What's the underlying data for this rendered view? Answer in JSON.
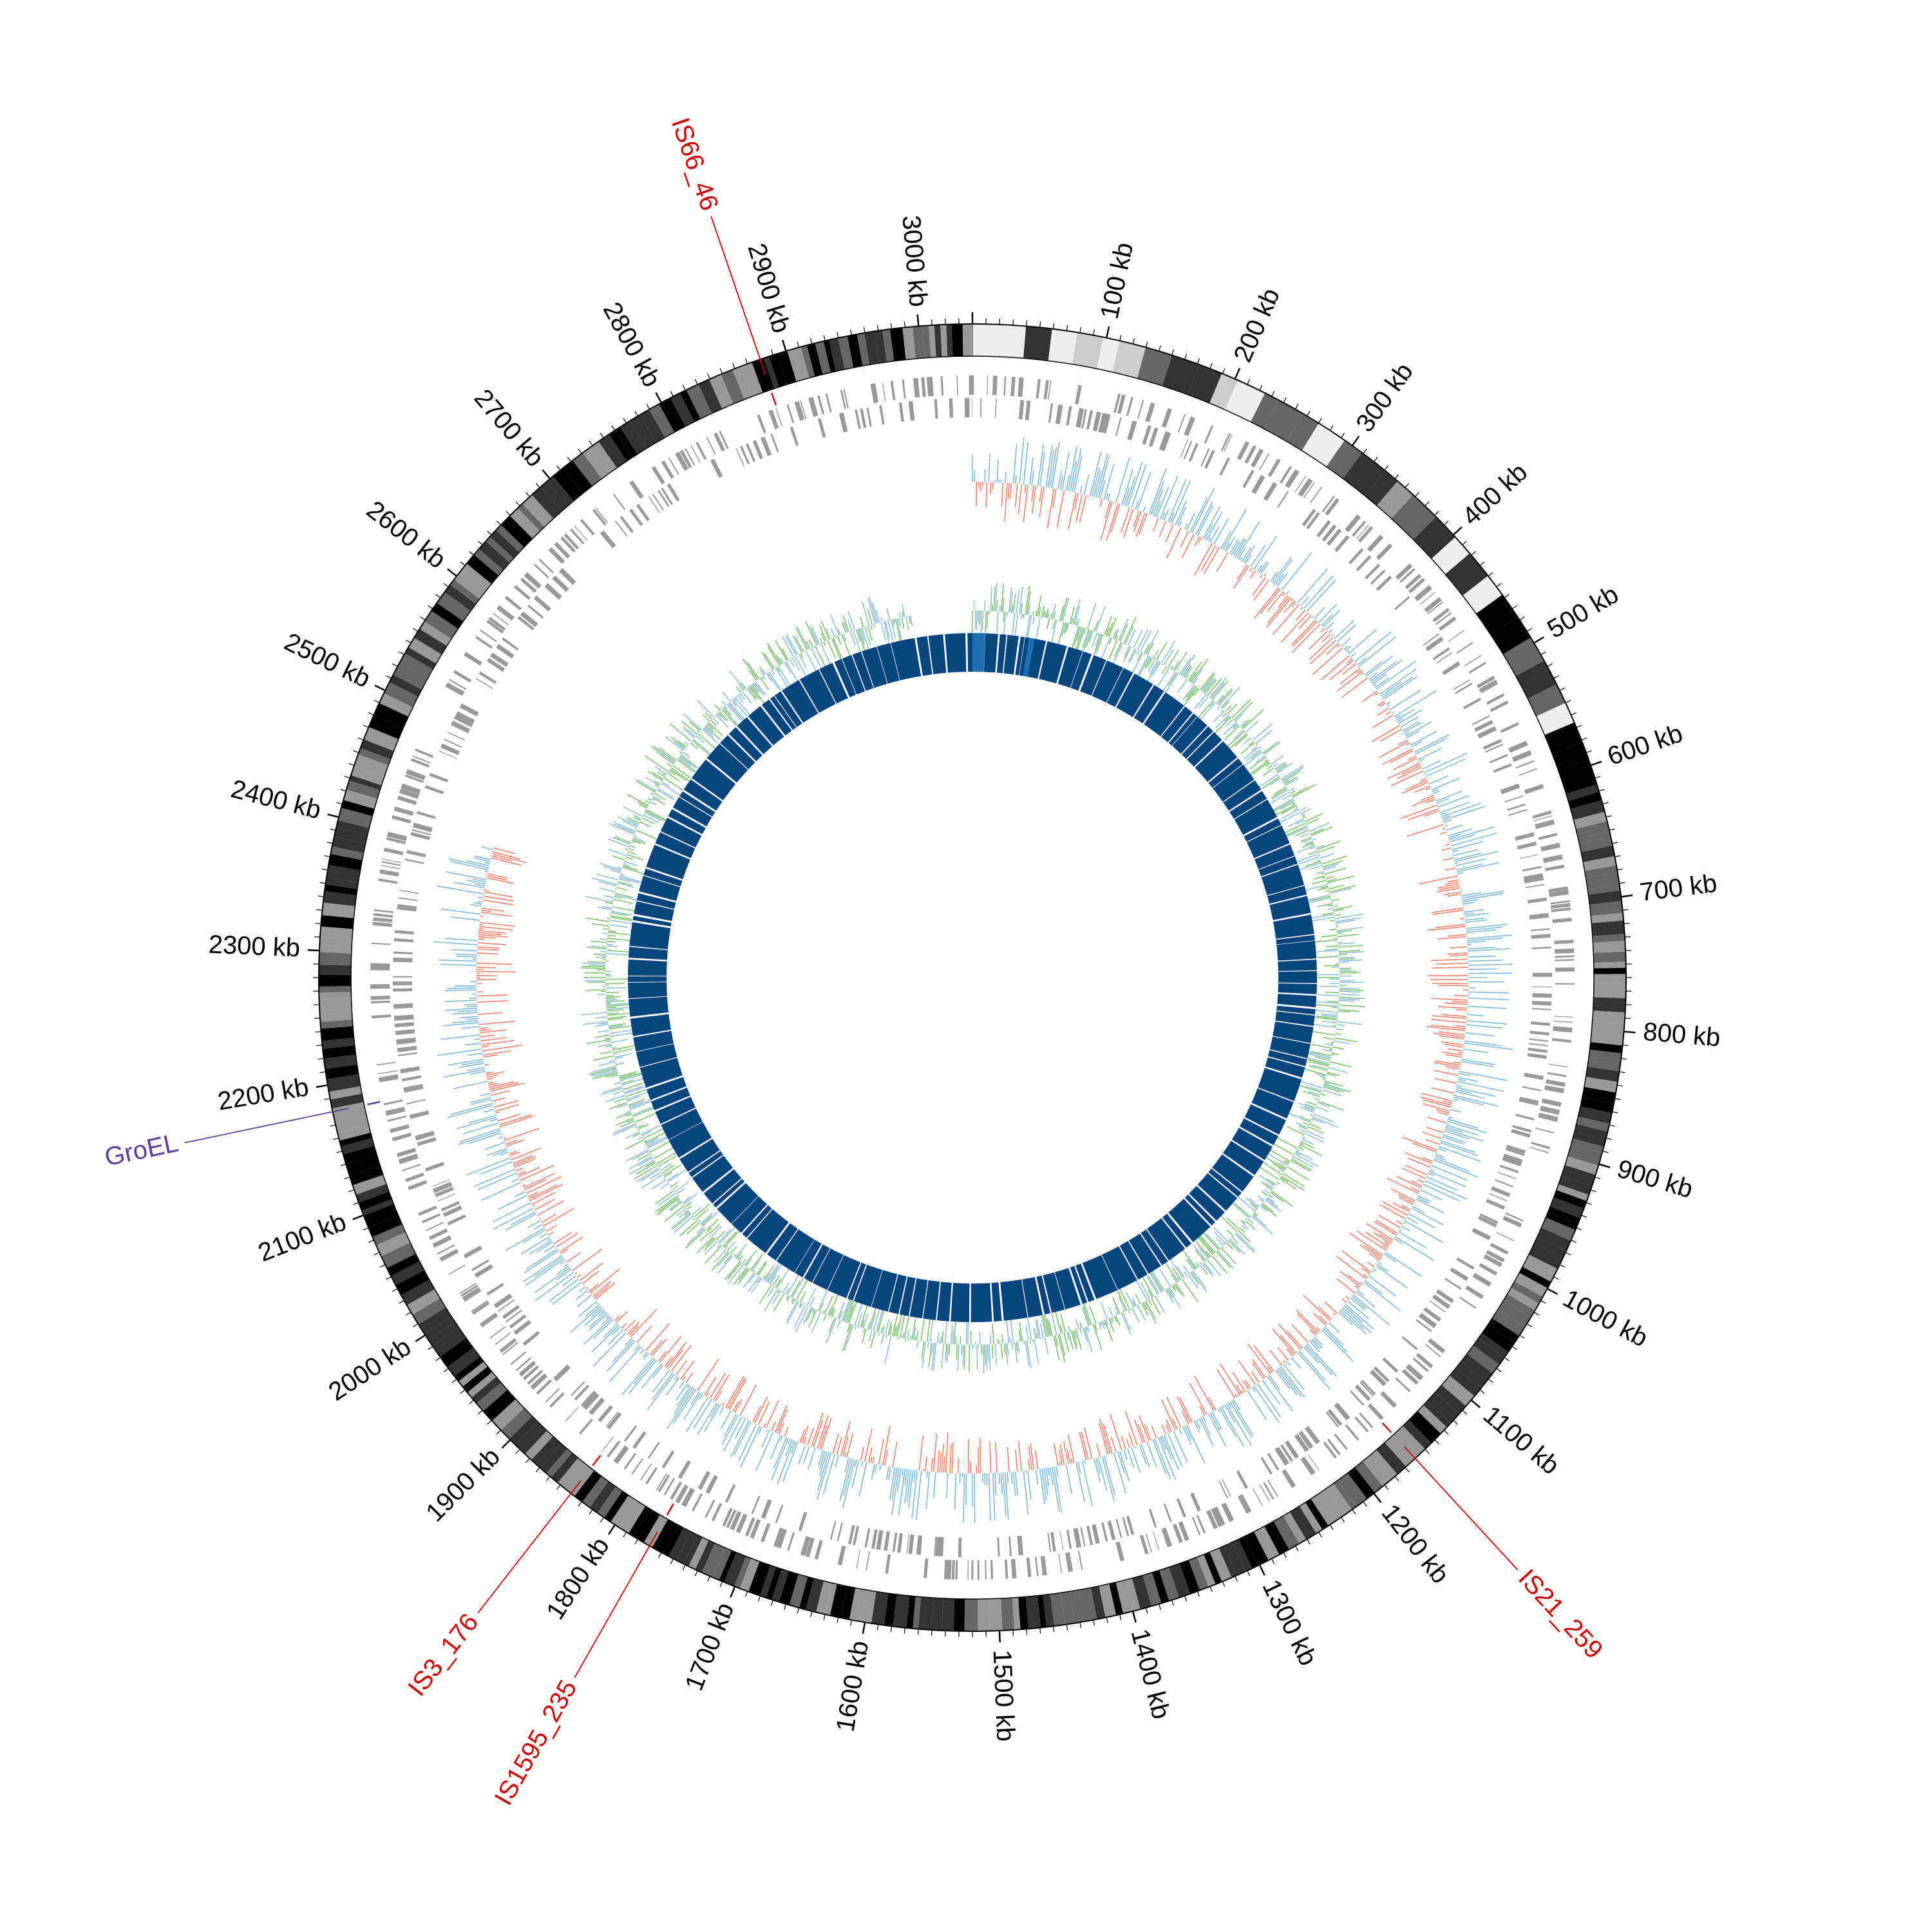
{
  "genome": {
    "length_kb": 3040,
    "scale_labels": [
      {
        "kb": 100,
        "text": "100 kb"
      },
      {
        "kb": 200,
        "text": "200 kb"
      },
      {
        "kb": 300,
        "text": "300 kb"
      },
      {
        "kb": 400,
        "text": "400 kb"
      },
      {
        "kb": 500,
        "text": "500 kb"
      },
      {
        "kb": 600,
        "text": "600 kb"
      },
      {
        "kb": 700,
        "text": "700 kb"
      },
      {
        "kb": 800,
        "text": "800 kb"
      },
      {
        "kb": 900,
        "text": "900 kb"
      },
      {
        "kb": 1000,
        "text": "1000 kb"
      },
      {
        "kb": 1100,
        "text": "1100 kb"
      },
      {
        "kb": 1200,
        "text": "1200 kb"
      },
      {
        "kb": 1300,
        "text": "1300 kb"
      },
      {
        "kb": 1400,
        "text": "1400 kb"
      },
      {
        "kb": 1500,
        "text": "1500 kb"
      },
      {
        "kb": 1600,
        "text": "1600 kb"
      },
      {
        "kb": 1700,
        "text": "1700 kb"
      },
      {
        "kb": 1800,
        "text": "1800 kb"
      },
      {
        "kb": 1900,
        "text": "1900 kb"
      },
      {
        "kb": 2000,
        "text": "2000 kb"
      },
      {
        "kb": 2100,
        "text": "2100 kb"
      },
      {
        "kb": 2200,
        "text": "2200 kb"
      },
      {
        "kb": 2300,
        "text": "2300 kb"
      },
      {
        "kb": 2400,
        "text": "2400 kb"
      },
      {
        "kb": 2500,
        "text": "2500 kb"
      },
      {
        "kb": 2600,
        "text": "2600 kb"
      },
      {
        "kb": 2700,
        "text": "2700 kb"
      },
      {
        "kb": 2800,
        "text": "2800 kb"
      },
      {
        "kb": 2900,
        "text": "2900 kb"
      },
      {
        "kb": 3000,
        "text": "3000 kb"
      }
    ]
  },
  "annotations": [
    {
      "name": "IS66_46",
      "kb": 2880,
      "color": "#cc0000"
    },
    {
      "name": "IS21_259",
      "kb": 1160,
      "color": "#cc0000"
    },
    {
      "name": "IS3_176",
      "kb": 1840,
      "color": "#cc0000"
    },
    {
      "name": "IS1595_235",
      "kb": 1770,
      "color": "#cc0000"
    },
    {
      "name": "GroEL",
      "kb": 2180,
      "color": "#5b3f9a"
    }
  ],
  "tracks": {
    "ideogram": {
      "colors": [
        "#000000",
        "#333333",
        "#666666",
        "#999999",
        "#cccccc",
        "#eeeeee"
      ]
    },
    "genes": {
      "color": "#999999"
    },
    "gc_skew": {
      "positive_color": "#f4826a",
      "negative_color": "#7fb8de",
      "coverage_kb": [
        0,
        2410
      ]
    },
    "gc_content": {
      "positive_color": "#6cbf5a",
      "negative_color": "#7fb8de",
      "coverage_kb": [
        0,
        2960
      ]
    },
    "core": {
      "color": "#08457e",
      "highlight_color": "#1f6fb2",
      "gap_color": "#ffffff"
    }
  }
}
